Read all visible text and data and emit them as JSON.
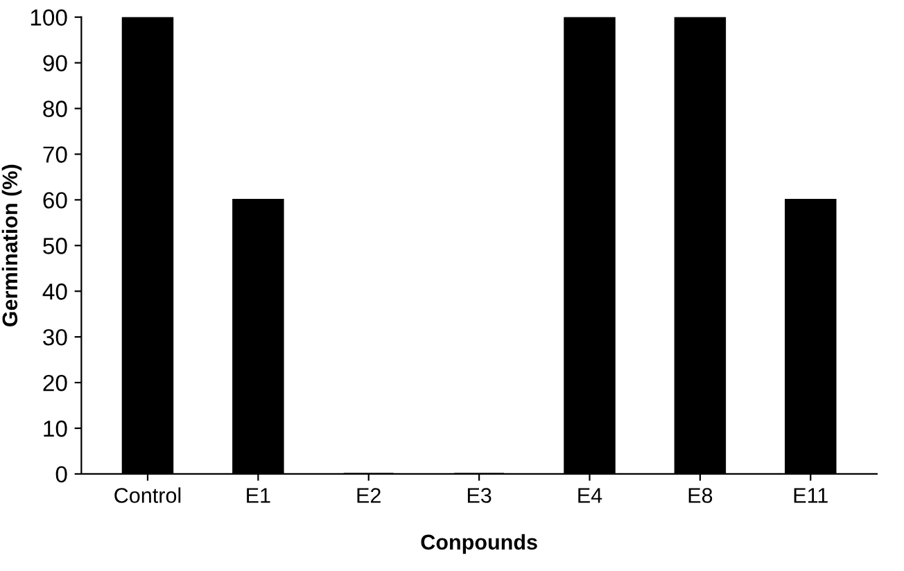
{
  "chart_data": {
    "type": "bar",
    "xlabel": "Conpounds",
    "ylabel": "Germination (%)",
    "categories": [
      "Control",
      "E1",
      "E2",
      "E3",
      "E4",
      "E8",
      "E11"
    ],
    "values": [
      100,
      60,
      0,
      0,
      100,
      100,
      60
    ],
    "color": "#000000",
    "ylim": [
      0,
      100
    ],
    "yticks": [
      0,
      10,
      20,
      30,
      40,
      50,
      60,
      70,
      80,
      90,
      100
    ],
    "grid": false
  }
}
